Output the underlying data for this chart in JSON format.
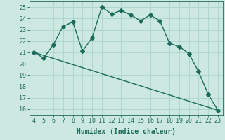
{
  "xlabel": "Humidex (Indice chaleur)",
  "background_color": "#cce8e0",
  "grid_color": "#aad4cc",
  "line_color": "#1a6b5a",
  "xlim": [
    3.5,
    23.5
  ],
  "ylim": [
    15.5,
    25.5
  ],
  "xticks": [
    4,
    5,
    6,
    7,
    8,
    9,
    10,
    11,
    12,
    13,
    14,
    15,
    16,
    17,
    18,
    19,
    20,
    21,
    22,
    23
  ],
  "yticks": [
    16,
    17,
    18,
    19,
    20,
    21,
    22,
    23,
    24,
    25
  ],
  "curve_x": [
    4,
    5,
    6,
    7,
    8,
    9,
    10,
    11,
    12,
    13,
    14,
    15,
    16,
    17,
    18,
    19,
    20,
    21,
    22,
    23
  ],
  "curve_y": [
    21.0,
    20.5,
    21.7,
    23.3,
    23.7,
    21.1,
    22.3,
    25.0,
    24.4,
    24.7,
    24.3,
    23.8,
    24.3,
    23.8,
    21.8,
    21.5,
    20.9,
    19.3,
    17.3,
    15.9
  ],
  "line_x": [
    4,
    23
  ],
  "line_y": [
    21.0,
    15.9
  ],
  "marker_size": 3,
  "line_width": 1.0,
  "font_size": 6,
  "label_font_size": 7
}
